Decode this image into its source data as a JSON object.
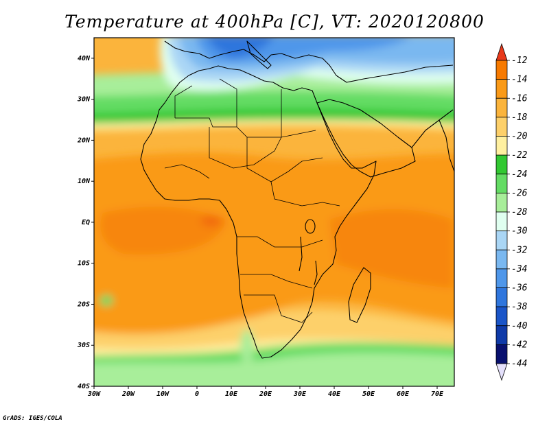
{
  "title": "Temperature at 400hPa [C], VT: 2020120800",
  "credit": "GrADS: IGES/COLA",
  "map": {
    "lon_range": [
      -30,
      75
    ],
    "lat_range": [
      -40,
      45
    ],
    "lon_ticks": [
      {
        "v": -30,
        "label": "30W"
      },
      {
        "v": -20,
        "label": "20W"
      },
      {
        "v": -10,
        "label": "10W"
      },
      {
        "v": 0,
        "label": "0"
      },
      {
        "v": 10,
        "label": "10E"
      },
      {
        "v": 20,
        "label": "20E"
      },
      {
        "v": 30,
        "label": "30E"
      },
      {
        "v": 40,
        "label": "40E"
      },
      {
        "v": 50,
        "label": "50E"
      },
      {
        "v": 60,
        "label": "60E"
      },
      {
        "v": 70,
        "label": "70E"
      }
    ],
    "lat_ticks": [
      {
        "v": 40,
        "label": "40N"
      },
      {
        "v": 30,
        "label": "30N"
      },
      {
        "v": 20,
        "label": "20N"
      },
      {
        "v": 10,
        "label": "10N"
      },
      {
        "v": 0,
        "label": "EQ"
      },
      {
        "v": -10,
        "label": "10S"
      },
      {
        "v": -20,
        "label": "20S"
      },
      {
        "v": -30,
        "label": "30S"
      },
      {
        "v": -40,
        "label": "40S"
      }
    ]
  },
  "colorbar": {
    "labels": [
      "-12",
      "-14",
      "-16",
      "-18",
      "-20",
      "-22",
      "-24",
      "-26",
      "-28",
      "-30",
      "-32",
      "-34",
      "-36",
      "-38",
      "-40",
      "-42",
      "-44"
    ],
    "colors": [
      "#f03c14",
      "#f77a00",
      "#fa9a18",
      "#fbb43c",
      "#fdd06a",
      "#fff0a0",
      "#32c832",
      "#64dc64",
      "#a8ee9a",
      "#e0fff0",
      "#aad6f5",
      "#7ab8f0",
      "#4f97ea",
      "#2f76dd",
      "#1a55c8",
      "#0f3aa8",
      "#08106e"
    ],
    "top_color": "#e8391a",
    "bottom_color": "#e4e0fb"
  }
}
